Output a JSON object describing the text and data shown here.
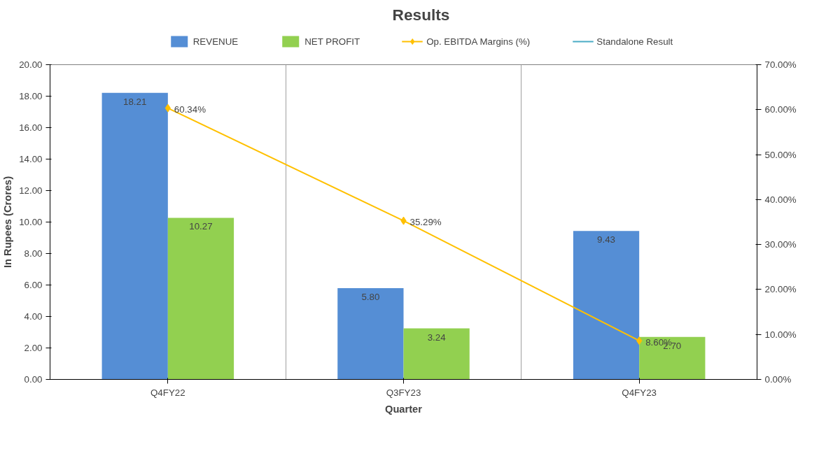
{
  "chart_data": {
    "type": "bar",
    "title": "Results",
    "xlabel": "Quarter",
    "ylabel": "In Rupees (Crores)",
    "categories": [
      "Q4FY22",
      "Q3FY23",
      "Q4FY23"
    ],
    "series": [
      {
        "name": "REVENUE",
        "color": "#558ed5",
        "values": [
          18.21,
          5.8,
          9.43
        ],
        "value_labels": [
          "18.21",
          "5.80",
          "9.43"
        ]
      },
      {
        "name": "NET PROFIT",
        "color": "#92d050",
        "values": [
          10.27,
          3.24,
          2.7
        ],
        "value_labels": [
          "10.27",
          "3.24",
          "2.70"
        ]
      },
      {
        "name": "Op. EBITDA Margins (%)",
        "type": "line",
        "axis": "y2",
        "marker": "diamond",
        "color": "#ffc000",
        "values": [
          60.34,
          35.29,
          8.6
        ],
        "value_labels": [
          "60.34%",
          "35.29%",
          "8.60%"
        ]
      },
      {
        "name": "Standalone Result",
        "type": "line",
        "color": "#4bacc6",
        "values": [
          null,
          null,
          null
        ]
      }
    ],
    "ylim": [
      0,
      20
    ],
    "yticks": [
      {
        "value": 0,
        "label": "0.00"
      },
      {
        "value": 2,
        "label": "2.00"
      },
      {
        "value": 4,
        "label": "4.00"
      },
      {
        "value": 6,
        "label": "6.00"
      },
      {
        "value": 8,
        "label": "8.00"
      },
      {
        "value": 10,
        "label": "10.00"
      },
      {
        "value": 12,
        "label": "12.00"
      },
      {
        "value": 14,
        "label": "14.00"
      },
      {
        "value": 16,
        "label": "16.00"
      },
      {
        "value": 18,
        "label": "18.00"
      },
      {
        "value": 20,
        "label": "20.00"
      }
    ],
    "y2lim": [
      0,
      70
    ],
    "y2ticks": [
      {
        "value": 0,
        "label": "0.00%"
      },
      {
        "value": 10,
        "label": "10.00%"
      },
      {
        "value": 20,
        "label": "20.00%"
      },
      {
        "value": 30,
        "label": "30.00%"
      },
      {
        "value": 40,
        "label": "40.00%"
      },
      {
        "value": 50,
        "label": "50.00%"
      },
      {
        "value": 60,
        "label": "60.00%"
      },
      {
        "value": 70,
        "label": "70.00%"
      }
    ],
    "grid": "x",
    "legend": "top"
  }
}
